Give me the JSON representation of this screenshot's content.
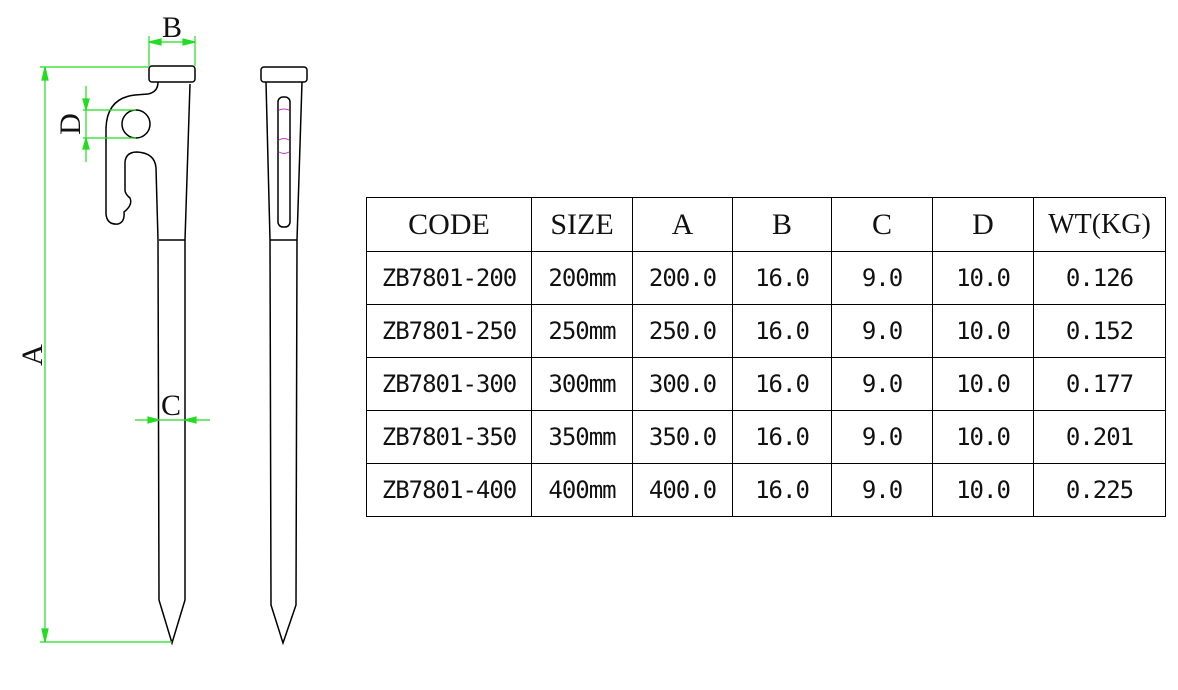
{
  "dimension_labels": {
    "a": "A",
    "b": "B",
    "c": "C",
    "d": "D"
  },
  "colors": {
    "dimension": "#22dd22",
    "outline": "#000000",
    "hidden_line": "#cc33cc"
  },
  "table": {
    "headers": [
      "CODE",
      "SIZE",
      "A",
      "B",
      "C",
      "D",
      "WT(KG)"
    ],
    "rows": [
      [
        "ZB7801-200",
        "200mm",
        "200.0",
        "16.0",
        "9.0",
        "10.0",
        "0.126"
      ],
      [
        "ZB7801-250",
        "250mm",
        "250.0",
        "16.0",
        "9.0",
        "10.0",
        "0.152"
      ],
      [
        "ZB7801-300",
        "300mm",
        "300.0",
        "16.0",
        "9.0",
        "10.0",
        "0.177"
      ],
      [
        "ZB7801-350",
        "350mm",
        "350.0",
        "16.0",
        "9.0",
        "10.0",
        "0.201"
      ],
      [
        "ZB7801-400",
        "400mm",
        "400.0",
        "16.0",
        "9.0",
        "10.0",
        "0.225"
      ]
    ]
  }
}
